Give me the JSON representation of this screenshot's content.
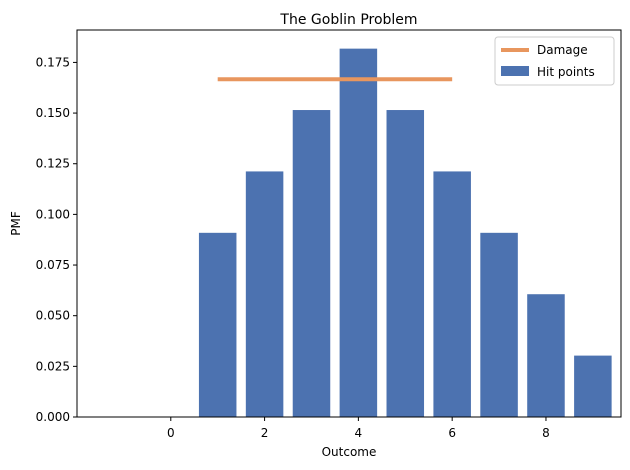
{
  "chart_data": {
    "type": "bar",
    "title": "The Goblin Problem",
    "xlabel": "Outcome",
    "ylabel": "PMF",
    "xlim": [
      -2.0,
      9.6
    ],
    "ylim": [
      0,
      0.191
    ],
    "xticks": [
      0,
      2,
      4,
      6,
      8
    ],
    "yticks": [
      0.0,
      0.025,
      0.05,
      0.075,
      0.1,
      0.125,
      0.15,
      0.175
    ],
    "ytick_labels": [
      "0.000",
      "0.025",
      "0.050",
      "0.075",
      "0.100",
      "0.125",
      "0.150",
      "0.175"
    ],
    "grid": false,
    "legend_position": "top-right",
    "series": [
      {
        "name": "Hit points",
        "kind": "bar",
        "color": "#4C72B0",
        "x": [
          1,
          2,
          3,
          4,
          5,
          6,
          7,
          8,
          9
        ],
        "values": [
          0.0909,
          0.1212,
          0.1515,
          0.1818,
          0.1515,
          0.1212,
          0.0909,
          0.0606,
          0.0303
        ]
      },
      {
        "name": "Damage",
        "kind": "line",
        "color": "#E8965E",
        "x": [
          1,
          6
        ],
        "values": [
          0.1667,
          0.1667
        ]
      }
    ]
  }
}
